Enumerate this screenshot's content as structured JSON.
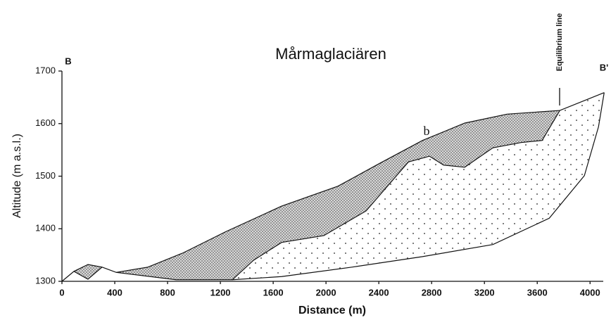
{
  "chart_data": {
    "type": "profile",
    "title": "Mårmaglaciären",
    "x_label": "Distance (m)",
    "y_label": "Altitude (m a.s.l.)",
    "xlim": [
      0,
      4100
    ],
    "ylim": [
      1300,
      1700
    ],
    "xticks": [
      0,
      400,
      800,
      1200,
      1600,
      2000,
      2400,
      2800,
      3200,
      3600,
      4000
    ],
    "yticks": [
      1300,
      1400,
      1500,
      1600,
      1700
    ],
    "labels": {
      "start": "B",
      "end": "B'",
      "profile": "b",
      "equilibrium": "Equilibrium line"
    },
    "series": [
      {
        "color": "#111",
        "x": [
          0,
          91,
          197,
          304,
          411,
          651,
          917,
          1237,
          1664,
          2091,
          2411,
          2731,
          3051,
          3371,
          3771,
          4107
        ],
        "values": [
          1300,
          1319,
          1332,
          1327,
          1317,
          1327,
          1354,
          1394,
          1443,
          1481,
          1525,
          1568,
          1601,
          1618,
          1625,
          1659
        ]
      },
      {
        "color": "#111",
        "x": [
          411,
          864,
          1291,
          1451,
          1664,
          1984,
          2304,
          2624,
          2784,
          2891,
          3051,
          3264,
          3477,
          3637,
          3771
        ],
        "values": [
          1317,
          1303,
          1303,
          1340,
          1374,
          1387,
          1434,
          1527,
          1538,
          1521,
          1517,
          1554,
          1564,
          1568,
          1625
        ]
      },
      {
        "color": "#111",
        "x": [
          1291,
          1664,
          2197,
          2731,
          3264,
          3691,
          3957,
          4064,
          4107
        ],
        "values": [
          1303,
          1309,
          1327,
          1347,
          1370,
          1420,
          1501,
          1594,
          1659
        ]
      },
      {
        "color": "#111",
        "x": [
          91,
          197,
          304
        ],
        "values": [
          1319,
          1304,
          1327
        ]
      }
    ]
  }
}
